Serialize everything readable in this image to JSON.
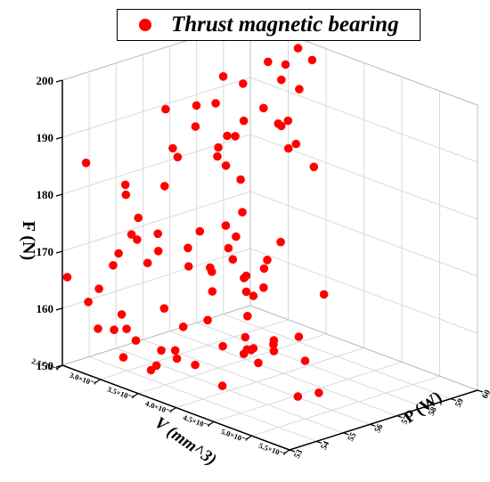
{
  "chart_data": {
    "type": "scatter",
    "title": "",
    "xlabel": "V (mm^3)",
    "ylabel": "P (W)",
    "zlabel": "F (N)",
    "xlabel_display": "V (mm^3)",
    "ylabel_display": "P (W)",
    "zlabel_display": "F (N)",
    "xlim": [
      2.5e-06,
      5.5e-06
    ],
    "ylim": [
      53,
      60
    ],
    "zlim": [
      150,
      200
    ],
    "x_ticks": [
      {
        "value": 2.5e-06,
        "label": "2.5×10⁻⁶"
      },
      {
        "value": 3e-06,
        "label": "3.0×10⁻⁶"
      },
      {
        "value": 3.5e-06,
        "label": "3.5×10⁻⁶"
      },
      {
        "value": 4e-06,
        "label": "4.0×10⁻⁶"
      },
      {
        "value": 4.5e-06,
        "label": "4.5×10⁻⁶"
      },
      {
        "value": 5e-06,
        "label": "5.0×10⁻⁶"
      },
      {
        "value": 5.5e-06,
        "label": "5.5×10⁻⁶"
      }
    ],
    "y_ticks": [
      {
        "value": 53,
        "label": "53"
      },
      {
        "value": 54,
        "label": "54"
      },
      {
        "value": 55,
        "label": "55"
      },
      {
        "value": 56,
        "label": "56"
      },
      {
        "value": 57,
        "label": "57"
      },
      {
        "value": 58,
        "label": "58"
      },
      {
        "value": 59,
        "label": "59"
      },
      {
        "value": 60,
        "label": "60"
      }
    ],
    "z_ticks": [
      {
        "value": 150,
        "label": "150"
      },
      {
        "value": 160,
        "label": "160"
      },
      {
        "value": 170,
        "label": "170"
      },
      {
        "value": 180,
        "label": "180"
      },
      {
        "value": 190,
        "label": "190"
      },
      {
        "value": 200,
        "label": "200"
      }
    ],
    "grid": true,
    "legend_position": "top",
    "colors": {
      "points": "#ff0000",
      "grid": "#d9d9d9",
      "axis": "#000000"
    },
    "series": [
      {
        "name": "Thrust magnetic bearing",
        "points": [
          [
            3.1e-06,
            57.3,
            197.2
          ],
          [
            3.3e-06,
            58.4,
            199.1
          ],
          [
            3.6e-06,
            59.2,
            199.7
          ],
          [
            3.2e-06,
            59.8,
            198.9
          ],
          [
            3.5e-06,
            59.0,
            194.4
          ],
          [
            2.9e-06,
            58.6,
            193.0
          ],
          [
            3e-06,
            59.9,
            194.9
          ],
          [
            3.3e-06,
            58.9,
            195.2
          ],
          [
            3.1e-06,
            56.3,
            193.6
          ],
          [
            3.3e-06,
            55.7,
            191.8
          ],
          [
            3e-06,
            57.3,
            192.0
          ],
          [
            3.4e-06,
            56.6,
            189.3
          ],
          [
            2.8e-06,
            56.0,
            191.9
          ],
          [
            3.3e-06,
            57.5,
            190.1
          ],
          [
            3.6e-06,
            58.3,
            190.4
          ],
          [
            3.1e-06,
            58.8,
            189.4
          ],
          [
            3.4e-06,
            58.5,
            188.6
          ],
          [
            3.3e-06,
            58.9,
            187.1
          ],
          [
            3.4e-06,
            56.9,
            188.8
          ],
          [
            3.6e-06,
            58.6,
            185.9
          ],
          [
            3.5e-06,
            58.6,
            184.6
          ],
          [
            3e-06,
            57.4,
            184.1
          ],
          [
            3e-06,
            55.7,
            186.5
          ],
          [
            3.1e-06,
            55.6,
            185.6
          ],
          [
            2.6e-06,
            53.6,
            185.1
          ],
          [
            3.2e-06,
            56.8,
            184.4
          ],
          [
            3.8e-06,
            58.7,
            182.7
          ],
          [
            3.1e-06,
            57.4,
            181.4
          ],
          [
            2.8e-06,
            54.5,
            180.9
          ],
          [
            3.4e-06,
            57.1,
            180.9
          ],
          [
            3e-06,
            55.4,
            180.3
          ],
          [
            3.6e-06,
            56.6,
            176.9
          ],
          [
            2.7e-06,
            54.8,
            178.2
          ],
          [
            3.7e-06,
            55.7,
            176.4
          ],
          [
            3.5e-06,
            55.3,
            175.0
          ],
          [
            4e-06,
            56.9,
            173.2
          ],
          [
            3.3e-06,
            54.3,
            175.1
          ],
          [
            3.8e-06,
            55.8,
            174.8
          ],
          [
            2.9e-06,
            54.7,
            175.3
          ],
          [
            3.2e-06,
            53.6,
            175.5
          ],
          [
            3.9e-06,
            55.4,
            171.9
          ],
          [
            3.1e-06,
            53.4,
            172.0
          ],
          [
            3.8e-06,
            54.9,
            170.0
          ],
          [
            3.7e-06,
            55.8,
            172.3
          ],
          [
            3.2e-06,
            55.7,
            170.0
          ],
          [
            3.2e-06,
            54.6,
            171.1
          ],
          [
            3.2e-06,
            54.2,
            169.6
          ],
          [
            4e-06,
            56.4,
            170.8
          ],
          [
            3.1e-06,
            53.2,
            170.2
          ],
          [
            3.6e-06,
            54.6,
            170.4
          ],
          [
            4.1e-06,
            56.0,
            170.4
          ],
          [
            2.6e-06,
            55.5,
            168.8
          ],
          [
            3.9e-06,
            55.9,
            168.3
          ],
          [
            3.6e-06,
            55.4,
            169.0
          ],
          [
            4.2e-06,
            55.7,
            168.0
          ],
          [
            3.8e-06,
            56.1,
            167.1
          ],
          [
            4.5e-06,
            57.1,
            166.2
          ],
          [
            2.6e-06,
            52.9,
            166.1
          ],
          [
            3.9e-06,
            55.9,
            165.5
          ],
          [
            3.7e-06,
            55.2,
            165.6
          ],
          [
            4.1e-06,
            55.6,
            166.2
          ],
          [
            4.2e-06,
            55.1,
            163.9
          ],
          [
            4.1e-06,
            53.9,
            164.5
          ],
          [
            2.7e-06,
            53.8,
            163.2
          ],
          [
            2.7e-06,
            53.4,
            161.5
          ],
          [
            3e-06,
            53.8,
            160.2
          ],
          [
            4.3e-06,
            53.9,
            160.9
          ],
          [
            4.4e-06,
            54.4,
            159.3
          ],
          [
            4.7e-06,
            55.6,
            162.0
          ],
          [
            3.1e-06,
            55.1,
            159.8
          ],
          [
            3.6e-06,
            54.4,
            160.1
          ],
          [
            4.3e-06,
            54.8,
            159.0
          ],
          [
            4.1e-06,
            55.3,
            159.4
          ],
          [
            4.3e-06,
            55.8,
            159.1
          ],
          [
            4.4e-06,
            55.5,
            159.3
          ],
          [
            3.4e-06,
            53.2,
            158.5
          ],
          [
            3.7e-06,
            53.3,
            158.1
          ],
          [
            2.9e-06,
            53.2,
            158.1
          ],
          [
            3.1e-06,
            53.7,
            158.3
          ],
          [
            2.9e-06,
            53.8,
            157.0
          ],
          [
            3.8e-06,
            53.6,
            156.7
          ],
          [
            4.3e-06,
            55.8,
            157.2
          ],
          [
            3.9e-06,
            54.0,
            155.5
          ],
          [
            4.1e-06,
            55.6,
            157.0
          ],
          [
            4e-06,
            55.8,
            155.9
          ],
          [
            3.2e-06,
            53.3,
            154.4
          ],
          [
            3.6e-06,
            54.1,
            156.4
          ],
          [
            3.6e-06,
            53.4,
            154.8
          ],
          [
            4.2e-06,
            55.5,
            155.1
          ],
          [
            4.4e-06,
            53.6,
            154.9
          ],
          [
            4.5e-06,
            56.4,
            155.6
          ],
          [
            3.6e-06,
            53.2,
            154.3
          ],
          [
            4.9e-06,
            55.0,
            153.4
          ],
          [
            5e-06,
            55.5,
            153.8
          ]
        ]
      }
    ]
  }
}
